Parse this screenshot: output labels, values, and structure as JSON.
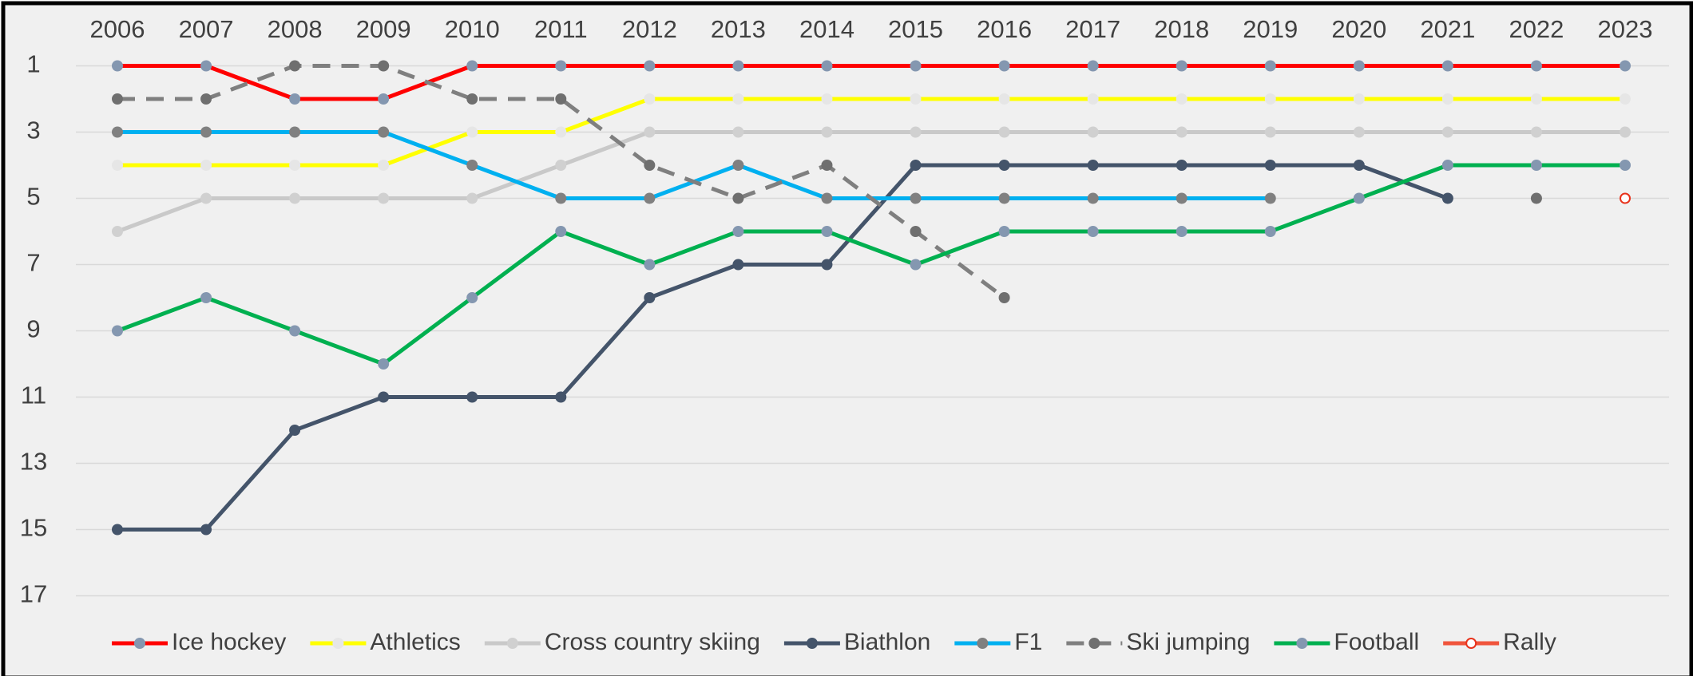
{
  "chart_data": {
    "type": "line",
    "categories": [
      "2006",
      "2007",
      "2008",
      "2009",
      "2010",
      "2011",
      "2012",
      "2013",
      "2014",
      "2015",
      "2016",
      "2017",
      "2018",
      "2019",
      "2020",
      "2021",
      "2022",
      "2023"
    ],
    "ylim": [
      0,
      18
    ],
    "y_reversed": true,
    "yticks": [
      1,
      3,
      5,
      7,
      9,
      11,
      13,
      15,
      17
    ],
    "grid": true,
    "legend": "bottom",
    "series": [
      {
        "name": "Ice hockey",
        "color": "#ff0000",
        "marker_color": "#8497b0",
        "dashed": false,
        "marker_fill": true,
        "values": [
          1,
          1,
          2,
          2,
          1,
          1,
          1,
          1,
          1,
          1,
          1,
          1,
          1,
          1,
          1,
          1,
          1,
          1
        ]
      },
      {
        "name": "Athletics",
        "color": "#ffff00",
        "marker_color": "#e6e6e6",
        "dashed": false,
        "marker_fill": true,
        "values": [
          4,
          4,
          4,
          4,
          3,
          3,
          2,
          2,
          2,
          2,
          2,
          2,
          2,
          2,
          2,
          2,
          2,
          2
        ]
      },
      {
        "name": "Cross country skiing",
        "color": "#c9c9c9",
        "marker_color": "#d0d0d0",
        "dashed": false,
        "marker_fill": true,
        "values": [
          6,
          5,
          5,
          5,
          5,
          4,
          3,
          3,
          3,
          3,
          3,
          3,
          3,
          3,
          3,
          3,
          3,
          3
        ]
      },
      {
        "name": "Biathlon",
        "color": "#44546a",
        "marker_color": "#44546a",
        "dashed": false,
        "marker_fill": true,
        "values": [
          15,
          15,
          12,
          11,
          11,
          11,
          8,
          7,
          7,
          4,
          4,
          4,
          4,
          4,
          4,
          5,
          null,
          null
        ]
      },
      {
        "name": "F1",
        "color": "#00b0f0",
        "marker_color": "#808080",
        "dashed": false,
        "marker_fill": true,
        "values": [
          3,
          3,
          3,
          3,
          4,
          5,
          5,
          4,
          5,
          5,
          5,
          5,
          5,
          5,
          null,
          null,
          null,
          null
        ]
      },
      {
        "name": "Ski jumping",
        "color": "#7f7f7f",
        "marker_color": "#6f6f6f",
        "dashed": true,
        "marker_fill": true,
        "values": [
          2,
          2,
          1,
          1,
          2,
          2,
          4,
          5,
          4,
          6,
          8,
          null,
          null,
          null,
          null,
          null,
          5,
          null
        ]
      },
      {
        "name": "Football",
        "color": "#00b050",
        "marker_color": "#8497b0",
        "dashed": false,
        "marker_fill": true,
        "values": [
          9,
          8,
          9,
          10,
          8,
          6,
          7,
          6,
          6,
          7,
          6,
          6,
          6,
          6,
          5,
          4,
          4,
          4
        ]
      },
      {
        "name": "Rally",
        "color": "#f0553c",
        "marker_color": "#e8331c",
        "dashed": false,
        "marker_fill": false,
        "values": [
          null,
          null,
          null,
          null,
          null,
          null,
          null,
          null,
          null,
          null,
          null,
          null,
          null,
          null,
          null,
          null,
          null,
          5
        ]
      }
    ]
  }
}
